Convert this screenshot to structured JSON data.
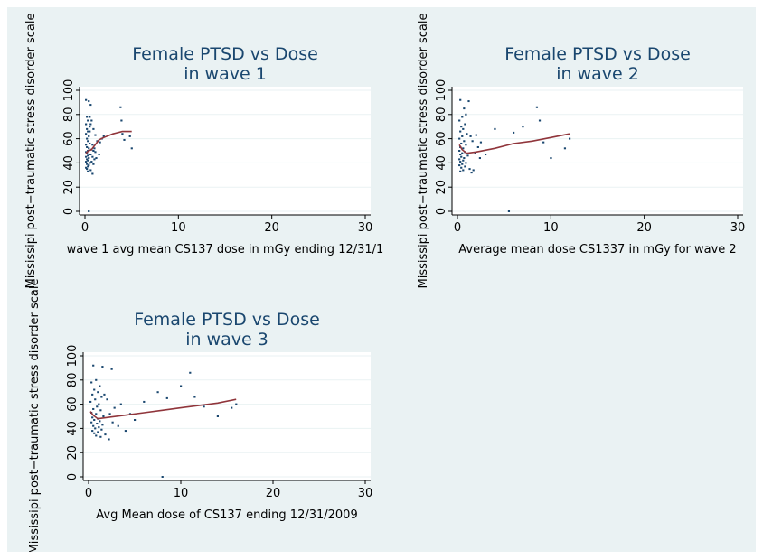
{
  "chart_data": [
    {
      "type": "scatter",
      "title": [
        "Female PTSD vs Dose",
        "in wave 1"
      ],
      "xlabel": "wave 1 avg mean CS137 dose  in mGy ending 12/31/1",
      "ylabel": "Mississipi post−traumatic stress disorder scale",
      "xlim": [
        0,
        30
      ],
      "ylim": [
        0,
        100
      ],
      "xticks": [
        "0",
        "10",
        "20",
        "30"
      ],
      "yticks": [
        "0",
        "20",
        "40",
        "60",
        "80",
        "100"
      ],
      "grid": true,
      "series": [
        {
          "kind": "points",
          "color": "#1a476f",
          "points": [
            [
              0.1,
              92
            ],
            [
              0.4,
              91
            ],
            [
              0.2,
              78
            ],
            [
              0.3,
              75
            ],
            [
              0.1,
              72
            ],
            [
              0.5,
              70
            ],
            [
              0.2,
              68
            ],
            [
              0.3,
              66
            ],
            [
              0.1,
              64
            ],
            [
              0.4,
              62
            ],
            [
              0.2,
              60
            ],
            [
              0.3,
              58
            ],
            [
              0.5,
              56
            ],
            [
              0.1,
              55
            ],
            [
              0.2,
              53
            ],
            [
              0.4,
              52
            ],
            [
              0.3,
              50
            ],
            [
              0.1,
              49
            ],
            [
              0.2,
              48
            ],
            [
              0.5,
              47
            ],
            [
              0.3,
              46
            ],
            [
              0.1,
              45
            ],
            [
              0.4,
              44
            ],
            [
              0.2,
              43
            ],
            [
              0.3,
              42
            ],
            [
              0.1,
              41
            ],
            [
              0.5,
              40
            ],
            [
              0.2,
              39
            ],
            [
              0.4,
              38
            ],
            [
              0.3,
              37
            ],
            [
              0.1,
              36
            ],
            [
              0.2,
              35
            ],
            [
              0.6,
              34
            ],
            [
              0.3,
              33
            ],
            [
              0.8,
              31
            ],
            [
              0.4,
              0
            ],
            [
              0.7,
              75
            ],
            [
              0.9,
              68
            ],
            [
              1.1,
              63
            ],
            [
              1.3,
              58
            ],
            [
              0.8,
              55
            ],
            [
              1.0,
              52
            ],
            [
              1.5,
              47
            ],
            [
              1.2,
              44
            ],
            [
              0.6,
              88
            ],
            [
              1.6,
              57
            ],
            [
              1.8,
              60
            ],
            [
              2.0,
              62
            ],
            [
              3.8,
              86
            ],
            [
              3.9,
              75
            ],
            [
              4.0,
              64
            ],
            [
              4.2,
              59
            ],
            [
              4.8,
              62
            ],
            [
              5.0,
              52
            ],
            [
              0.7,
              51
            ],
            [
              0.9,
              50
            ],
            [
              1.1,
              49
            ],
            [
              0.6,
              47
            ],
            [
              0.8,
              45
            ],
            [
              1.0,
              43
            ],
            [
              0.7,
              41
            ],
            [
              0.9,
              39
            ],
            [
              0.5,
              66
            ],
            [
              0.6,
              72
            ],
            [
              0.5,
              78
            ]
          ]
        },
        {
          "kind": "line",
          "color": "#90353b",
          "points": [
            [
              0.1,
              48
            ],
            [
              0.4,
              50
            ],
            [
              0.7,
              51
            ],
            [
              1.0,
              54
            ],
            [
              1.5,
              59
            ],
            [
              2.0,
              61
            ],
            [
              3.0,
              64
            ],
            [
              4.0,
              66
            ],
            [
              5.0,
              66
            ]
          ]
        }
      ]
    },
    {
      "type": "scatter",
      "title": [
        "Female PTSD vs Dose",
        "in wave 2"
      ],
      "xlabel": "Average mean dose CS1337 in mGy for wave 2",
      "ylabel": "Mississipi post−traumatic stress disorder scale",
      "xlim": [
        0,
        30
      ],
      "ylim": [
        0,
        100
      ],
      "xticks": [
        "0",
        "10",
        "20",
        "30"
      ],
      "yticks": [
        "0",
        "20",
        "40",
        "60",
        "80",
        "100"
      ],
      "grid": true,
      "series": [
        {
          "kind": "points",
          "color": "#1a476f",
          "points": [
            [
              0.3,
              92
            ],
            [
              1.2,
              91
            ],
            [
              0.5,
              78
            ],
            [
              0.2,
              75
            ],
            [
              0.8,
              72
            ],
            [
              0.4,
              70
            ],
            [
              0.6,
              68
            ],
            [
              0.3,
              66
            ],
            [
              1.0,
              64
            ],
            [
              0.5,
              62
            ],
            [
              0.2,
              60
            ],
            [
              0.7,
              58
            ],
            [
              0.4,
              56
            ],
            [
              0.9,
              55
            ],
            [
              0.3,
              53
            ],
            [
              0.6,
              52
            ],
            [
              0.2,
              50
            ],
            [
              0.8,
              49
            ],
            [
              0.5,
              48
            ],
            [
              0.3,
              47
            ],
            [
              1.1,
              46
            ],
            [
              0.4,
              45
            ],
            [
              0.7,
              44
            ],
            [
              0.2,
              43
            ],
            [
              0.6,
              42
            ],
            [
              0.3,
              41
            ],
            [
              0.9,
              40
            ],
            [
              0.5,
              39
            ],
            [
              0.2,
              38
            ],
            [
              0.8,
              37
            ],
            [
              0.4,
              36
            ],
            [
              1.3,
              35
            ],
            [
              0.6,
              34
            ],
            [
              0.3,
              33
            ],
            [
              1.5,
              32
            ],
            [
              1.7,
              34
            ],
            [
              2.0,
              63
            ],
            [
              2.5,
              57
            ],
            [
              2.2,
              53
            ],
            [
              3.0,
              47
            ],
            [
              4.0,
              68
            ],
            [
              5.5,
              0
            ],
            [
              6.0,
              65
            ],
            [
              7.0,
              70
            ],
            [
              8.5,
              86
            ],
            [
              8.8,
              75
            ],
            [
              9.2,
              57
            ],
            [
              10.0,
              44
            ],
            [
              11.5,
              52
            ],
            [
              12.0,
              60
            ],
            [
              1.4,
              62
            ],
            [
              1.6,
              58
            ],
            [
              1.9,
              48
            ],
            [
              2.4,
              44
            ],
            [
              0.7,
              85
            ],
            [
              0.9,
              80
            ]
          ]
        },
        {
          "kind": "line",
          "color": "#90353b",
          "points": [
            [
              0.2,
              55
            ],
            [
              0.5,
              51
            ],
            [
              1.0,
              48
            ],
            [
              2.0,
              49
            ],
            [
              4.0,
              52
            ],
            [
              6.0,
              56
            ],
            [
              8.0,
              58
            ],
            [
              10.0,
              61
            ],
            [
              12.0,
              64
            ]
          ]
        }
      ]
    },
    {
      "type": "scatter",
      "title": [
        "Female PTSD vs Dose",
        "in wave 3"
      ],
      "xlabel": "Avg Mean dose of CS137 ending 12/31/2009",
      "ylabel": "Mississipi post−traumatic stress disorder scale",
      "xlim": [
        0,
        30
      ],
      "ylim": [
        0,
        100
      ],
      "xticks": [
        "0",
        "10",
        "20",
        "30"
      ],
      "yticks": [
        "0",
        "20",
        "40",
        "60",
        "80",
        "100"
      ],
      "grid": true,
      "series": [
        {
          "kind": "points",
          "color": "#1a476f",
          "points": [
            [
              0.5,
              92
            ],
            [
              1.5,
              91
            ],
            [
              2.5,
              89
            ],
            [
              0.8,
              80
            ],
            [
              0.3,
              78
            ],
            [
              1.2,
              75
            ],
            [
              0.6,
              72
            ],
            [
              1.0,
              70
            ],
            [
              0.4,
              68
            ],
            [
              1.4,
              66
            ],
            [
              0.7,
              64
            ],
            [
              0.2,
              62
            ],
            [
              1.1,
              60
            ],
            [
              0.9,
              58
            ],
            [
              0.5,
              56
            ],
            [
              1.3,
              55
            ],
            [
              0.3,
              53
            ],
            [
              0.8,
              52
            ],
            [
              1.6,
              50
            ],
            [
              0.4,
              49
            ],
            [
              1.0,
              48
            ],
            [
              0.6,
              47
            ],
            [
              1.2,
              46
            ],
            [
              0.3,
              45
            ],
            [
              0.9,
              44
            ],
            [
              1.5,
              43
            ],
            [
              0.5,
              42
            ],
            [
              1.1,
              41
            ],
            [
              0.7,
              40
            ],
            [
              1.4,
              39
            ],
            [
              0.4,
              38
            ],
            [
              1.0,
              37
            ],
            [
              0.6,
              36
            ],
            [
              1.8,
              35
            ],
            [
              0.8,
              34
            ],
            [
              1.3,
              33
            ],
            [
              2.2,
              31
            ],
            [
              2.0,
              64
            ],
            [
              2.8,
              57
            ],
            [
              3.5,
              60
            ],
            [
              4.5,
              52
            ],
            [
              5.0,
              47
            ],
            [
              6.0,
              62
            ],
            [
              7.5,
              70
            ],
            [
              8.0,
              0
            ],
            [
              8.5,
              65
            ],
            [
              10.0,
              75
            ],
            [
              11.0,
              86
            ],
            [
              11.5,
              66
            ],
            [
              12.5,
              58
            ],
            [
              14.0,
              50
            ],
            [
              15.5,
              57
            ],
            [
              16.0,
              60
            ],
            [
              2.6,
              45
            ],
            [
              3.2,
              42
            ],
            [
              4.0,
              38
            ],
            [
              1.7,
              68
            ],
            [
              2.3,
              52
            ]
          ]
        },
        {
          "kind": "line",
          "color": "#90353b",
          "points": [
            [
              0.2,
              54
            ],
            [
              0.5,
              51
            ],
            [
              1.0,
              48
            ],
            [
              2.0,
              49
            ],
            [
              4.0,
              51
            ],
            [
              6.0,
              53
            ],
            [
              8.0,
              55
            ],
            [
              10.0,
              57
            ],
            [
              12.0,
              59
            ],
            [
              14.0,
              61
            ],
            [
              16.0,
              64
            ]
          ]
        }
      ]
    }
  ]
}
